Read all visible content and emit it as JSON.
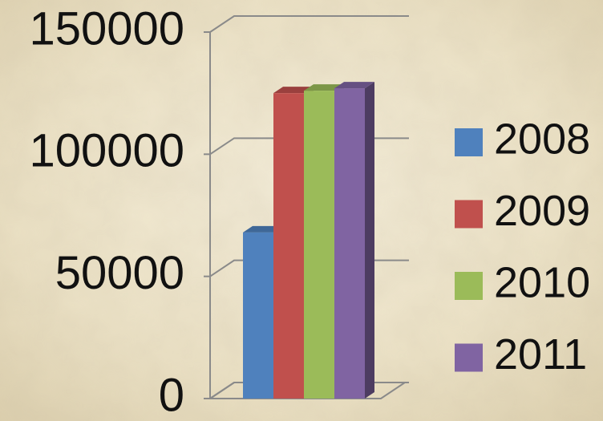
{
  "chart_data": {
    "type": "bar3d",
    "categories": [
      null
    ],
    "series": [
      {
        "name": "2008",
        "color": "#4f81bd",
        "values": [
          68000
        ]
      },
      {
        "name": "2009",
        "color": "#c0504d",
        "values": [
          125000
        ]
      },
      {
        "name": "2010",
        "color": "#9bbb59",
        "values": [
          126000
        ]
      },
      {
        "name": "2011",
        "color": "#8064a2",
        "values": [
          127000
        ]
      }
    ],
    "ylim": [
      0,
      150000
    ],
    "yticks": [
      0,
      50000,
      100000,
      150000
    ],
    "grid": true,
    "legend": "right"
  }
}
